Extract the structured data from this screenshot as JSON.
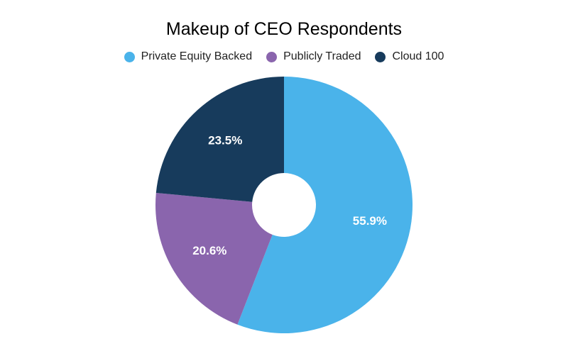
{
  "chart_data": {
    "type": "pie",
    "title": "Makeup of CEO Respondents",
    "legend_position": "top",
    "donut": true,
    "slices": [
      {
        "label": "Private Equity Backed",
        "value": 55.9,
        "display": "55.9%",
        "color": "#4ab3ea"
      },
      {
        "label": "Publicly Traded",
        "value": 20.6,
        "display": "20.6%",
        "color": "#8a65ad"
      },
      {
        "label": "Cloud 100",
        "value": 23.5,
        "display": "23.5%",
        "color": "#173b5c"
      }
    ]
  }
}
